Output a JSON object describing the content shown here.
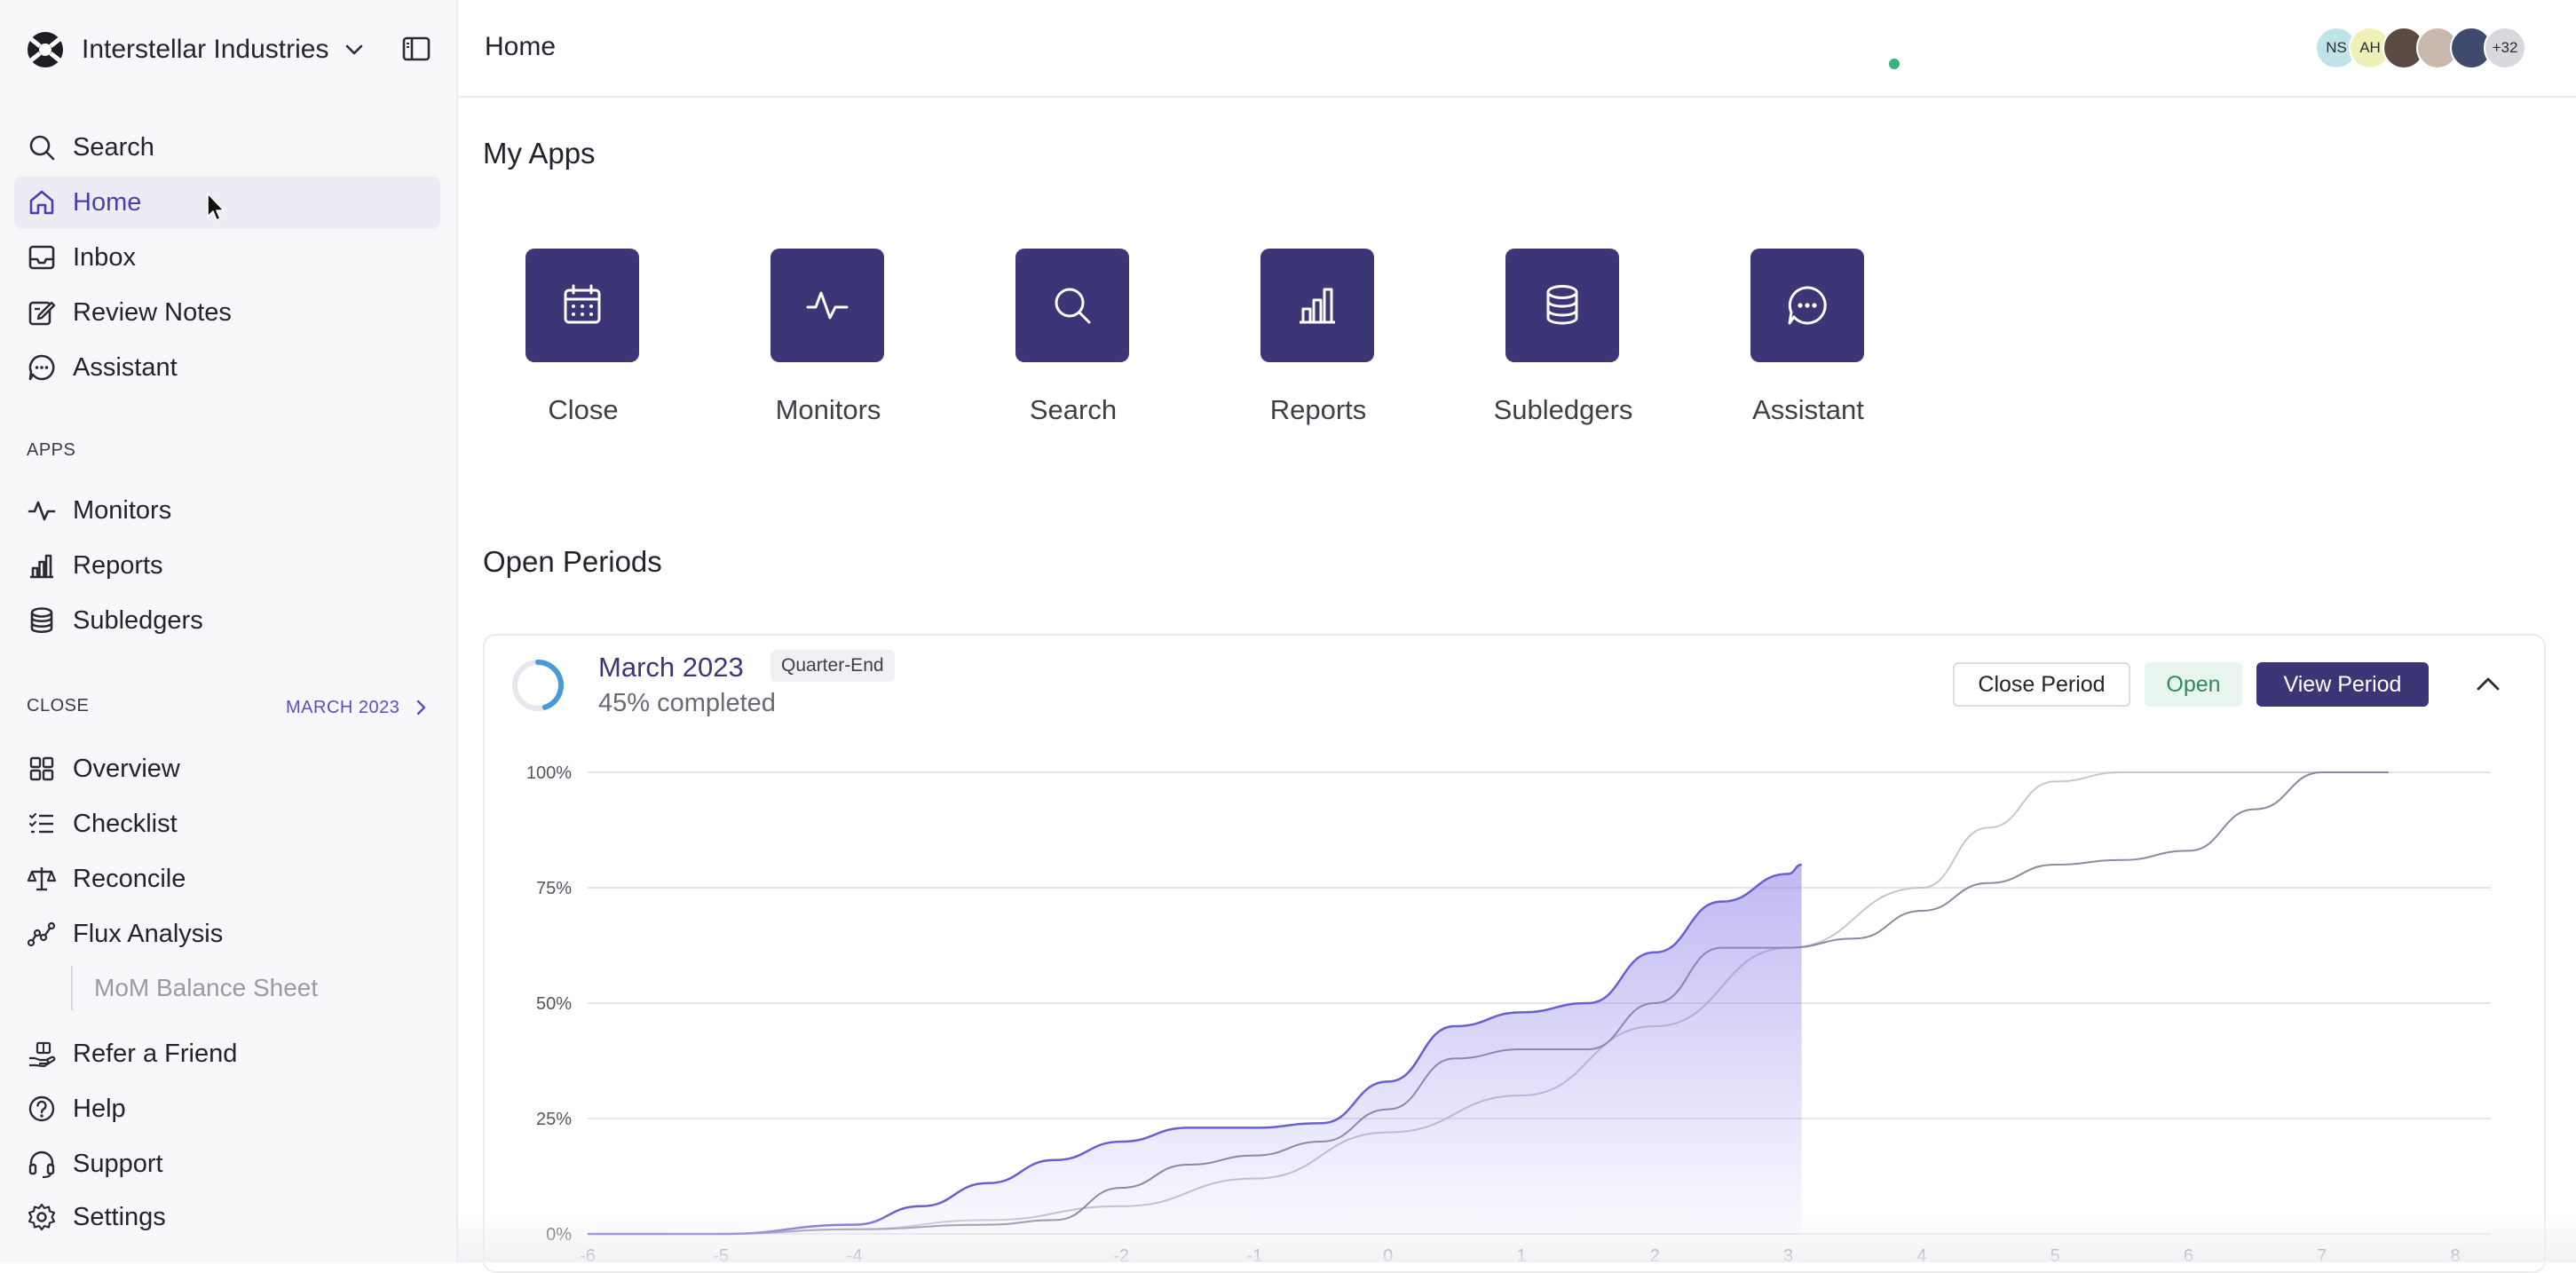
{
  "org": {
    "name": "Interstellar Industries"
  },
  "sidebar": {
    "main": [
      {
        "label": "Search",
        "icon": "search-icon"
      },
      {
        "label": "Home",
        "icon": "home-icon",
        "active": true
      },
      {
        "label": "Inbox",
        "icon": "inbox-icon"
      },
      {
        "label": "Review Notes",
        "icon": "review-notes-icon"
      },
      {
        "label": "Assistant",
        "icon": "chat-icon"
      }
    ],
    "apps_heading": "APPS",
    "apps": [
      {
        "label": "Monitors",
        "icon": "pulse-icon"
      },
      {
        "label": "Reports",
        "icon": "bar-chart-icon"
      },
      {
        "label": "Subledgers",
        "icon": "database-icon"
      }
    ],
    "close_heading": "CLOSE",
    "close_period": "MARCH 2023",
    "close": [
      {
        "label": "Overview",
        "icon": "grid-icon"
      },
      {
        "label": "Checklist",
        "icon": "checklist-icon"
      },
      {
        "label": "Reconcile",
        "icon": "scale-icon"
      },
      {
        "label": "Flux Analysis",
        "icon": "trend-icon"
      }
    ],
    "sub_item": "MoM Balance Sheet",
    "footer": [
      {
        "label": "Refer a Friend",
        "icon": "gift-hand-icon"
      },
      {
        "label": "Help",
        "icon": "help-icon"
      },
      {
        "label": "Support",
        "icon": "headset-icon"
      },
      {
        "label": "Settings",
        "icon": "gear-icon"
      }
    ]
  },
  "header": {
    "title": "Home",
    "avatars": [
      {
        "initials": "NS",
        "color": "#bfe3e6"
      },
      {
        "initials": "AH",
        "color": "#eef0b8"
      },
      {
        "initials": "",
        "color": "#5a4a42"
      },
      {
        "initials": "",
        "color": "#c9b8ad"
      },
      {
        "initials": "",
        "color": "#3f4a6e"
      },
      {
        "initials": "+32",
        "color": "#d7d7dc"
      }
    ]
  },
  "my_apps": {
    "title": "My Apps",
    "apps": [
      {
        "label": "Close",
        "icon": "calendar-icon"
      },
      {
        "label": "Monitors",
        "icon": "pulse-icon"
      },
      {
        "label": "Search",
        "icon": "search-icon"
      },
      {
        "label": "Reports",
        "icon": "bar-chart-icon"
      },
      {
        "label": "Subledgers",
        "icon": "database-icon"
      },
      {
        "label": "Assistant",
        "icon": "chat-icon"
      }
    ]
  },
  "open_periods": {
    "title": "Open Periods",
    "period": {
      "name": "March 2023",
      "badge": "Quarter-End",
      "progress_text": "45% completed",
      "progress": 0.45,
      "close_button": "Close Period",
      "status": "Open",
      "view_button": "View Period"
    }
  },
  "colors": {
    "accent": "#3c3676",
    "accent_text": "#4b3fb0",
    "fill": "#8b7fe8"
  },
  "chart_data": {
    "type": "area",
    "title": "",
    "xlabel": "",
    "ylabel": "",
    "x_ticks": [
      -6,
      -5,
      -4,
      -2,
      -1,
      0,
      1,
      2,
      3,
      4,
      5,
      6,
      7,
      8
    ],
    "y_ticks": [
      "0%",
      "25%",
      "50%",
      "75%",
      "100%"
    ],
    "xlim": [
      -6,
      8
    ],
    "ylim": [
      0,
      100
    ],
    "grid": true,
    "series": [
      {
        "style": "area",
        "color": "#6a5fd0",
        "points": [
          [
            -6,
            0
          ],
          [
            -5,
            0
          ],
          [
            -4,
            2
          ],
          [
            -3.5,
            6
          ],
          [
            -3,
            11
          ],
          [
            -2.5,
            16
          ],
          [
            -2,
            20
          ],
          [
            -1.5,
            23
          ],
          [
            -1,
            23
          ],
          [
            -0.5,
            24
          ],
          [
            0,
            33
          ],
          [
            0.5,
            45
          ],
          [
            1,
            48
          ],
          [
            1.5,
            50
          ],
          [
            2,
            61
          ],
          [
            2.5,
            72
          ],
          [
            3,
            78
          ],
          [
            3.1,
            80
          ]
        ]
      },
      {
        "style": "line",
        "color": "#8a8aa0",
        "points": [
          [
            -6,
            0
          ],
          [
            -5,
            0
          ],
          [
            -4,
            1
          ],
          [
            -3,
            2
          ],
          [
            -2.5,
            3
          ],
          [
            -2,
            10
          ],
          [
            -1.5,
            15
          ],
          [
            -1,
            17
          ],
          [
            -0.5,
            20
          ],
          [
            0,
            27
          ],
          [
            0.5,
            38
          ],
          [
            1,
            40
          ],
          [
            1.5,
            40
          ],
          [
            2,
            50
          ],
          [
            2.5,
            62
          ],
          [
            3,
            62
          ],
          [
            3.5,
            64
          ],
          [
            4,
            70
          ],
          [
            4.5,
            76
          ],
          [
            5,
            80
          ],
          [
            5.5,
            81
          ],
          [
            6,
            83
          ],
          [
            6.5,
            92
          ],
          [
            7,
            100
          ],
          [
            7.5,
            100
          ]
        ]
      },
      {
        "style": "line",
        "color": "#c6c6d2",
        "points": [
          [
            -6,
            0
          ],
          [
            -5,
            0
          ],
          [
            -4,
            1
          ],
          [
            -3,
            3
          ],
          [
            -2,
            6
          ],
          [
            -1,
            12
          ],
          [
            0,
            22
          ],
          [
            1,
            30
          ],
          [
            2,
            45
          ],
          [
            3,
            62
          ],
          [
            4,
            75
          ],
          [
            4.5,
            88
          ],
          [
            5,
            98
          ],
          [
            5.5,
            100
          ],
          [
            6,
            100
          ],
          [
            7,
            100
          ],
          [
            7.5,
            100
          ]
        ]
      }
    ]
  }
}
